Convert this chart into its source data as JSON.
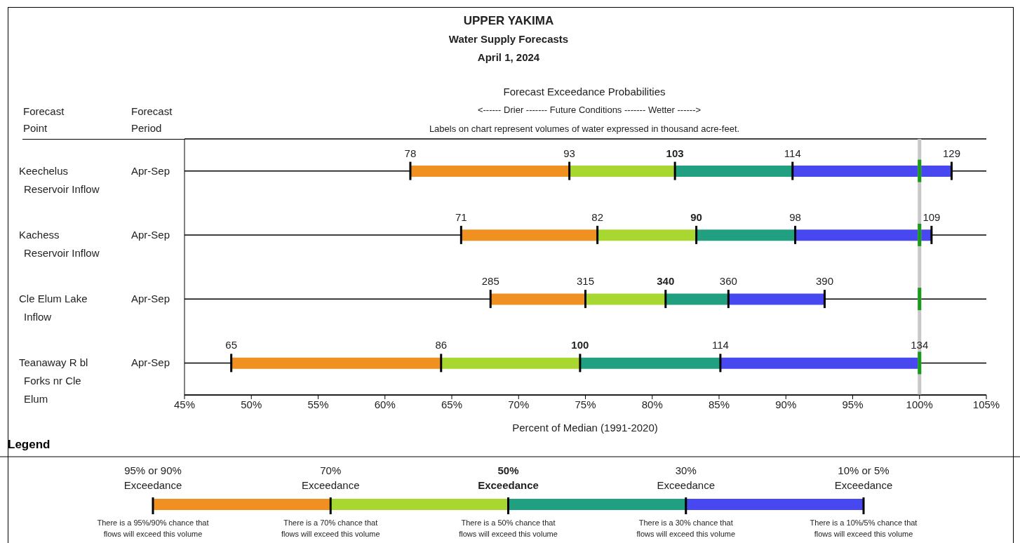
{
  "chart_data": {
    "type": "bar",
    "orientation": "horizontal",
    "title": "UPPER YAKIMA",
    "subtitle": "Water Supply Forecasts\nApril 1, 2024",
    "xlabel": "Percent of Median (1991-2020)",
    "legend_title": "Legend",
    "categories": [
      "Keechelus Reservoir Inflow",
      "Kachess Reservoir Inflow",
      "Cle Elum Lake Inflow",
      "Teanaway R bl Forks nr Cle Elum"
    ],
    "series": [
      {
        "color": "#f09020",
        "base": [
          61.9,
          65.7,
          67.9,
          48.5
        ],
        "values": [
          11.9,
          10.2,
          7.1,
          15.7
        ]
      },
      {
        "color": "#a8d830",
        "base": [
          73.8,
          75.9,
          75.0,
          64.2
        ],
        "values": [
          7.9,
          7.4,
          6.0,
          10.4
        ]
      },
      {
        "color": "#20a080",
        "base": [
          81.7,
          83.3,
          81.0,
          74.6
        ],
        "values": [
          8.8,
          7.4,
          4.7,
          10.5
        ]
      },
      {
        "color": "#4848f0",
        "base": [
          90.5,
          90.7,
          85.7,
          85.1
        ],
        "values": [
          11.9,
          10.2,
          7.2,
          14.9
        ]
      }
    ],
    "ref_lines": [
      {
        "axis": "x",
        "value": 100,
        "color": "#c8c8c8"
      }
    ],
    "xlim": [
      45,
      105
    ],
    "xticks": [
      {
        "value": 45,
        "label": "45%"
      },
      {
        "value": 50,
        "label": "50%"
      },
      {
        "value": 55,
        "label": "55%"
      },
      {
        "value": 60,
        "label": "60%"
      },
      {
        "value": 65,
        "label": "65%"
      },
      {
        "value": 70,
        "label": "70%"
      },
      {
        "value": 75,
        "label": "75%"
      },
      {
        "value": 80,
        "label": "80%"
      },
      {
        "value": 85,
        "label": "85%"
      },
      {
        "value": 90,
        "label": "90%"
      },
      {
        "value": 95,
        "label": "95%"
      },
      {
        "value": 100,
        "label": "100%"
      },
      {
        "value": 105,
        "label": "105%"
      }
    ],
    "grid": "y",
    "annotations": [
      "Forecast Point",
      "Forecast Period",
      "Forecast Exceedance Probabilities",
      "<------ Drier ------- Future Conditions ------- Wetter ------>",
      "Labels on chart represent volumes of water expressed in thousand acre-feet.",
      "Apr-Sep",
      "Apr-Sep",
      "Apr-Sep",
      "Apr-Sep",
      "There is a 95%/90% chance that flows will exceed this volume",
      "There is a 70% chance that flows will exceed this volume",
      "There is a 50% chance that flows will exceed this volume",
      "There is a 30% chance that flows will exceed this volume",
      "There is a 10%/5% chance that flows will exceed this volume",
      "95% or 90% Exceedance",
      "70% Exceedance",
      "50% Exceedance",
      "30% Exceedance",
      "10% or 5% Exceedance",
      "78",
      "93",
      "103",
      "114",
      "129",
      "71",
      "82",
      "90",
      "98",
      "109",
      "285",
      "315",
      "340",
      "360",
      "390",
      "65",
      "86",
      "100",
      "114",
      "134"
    ]
  }
}
